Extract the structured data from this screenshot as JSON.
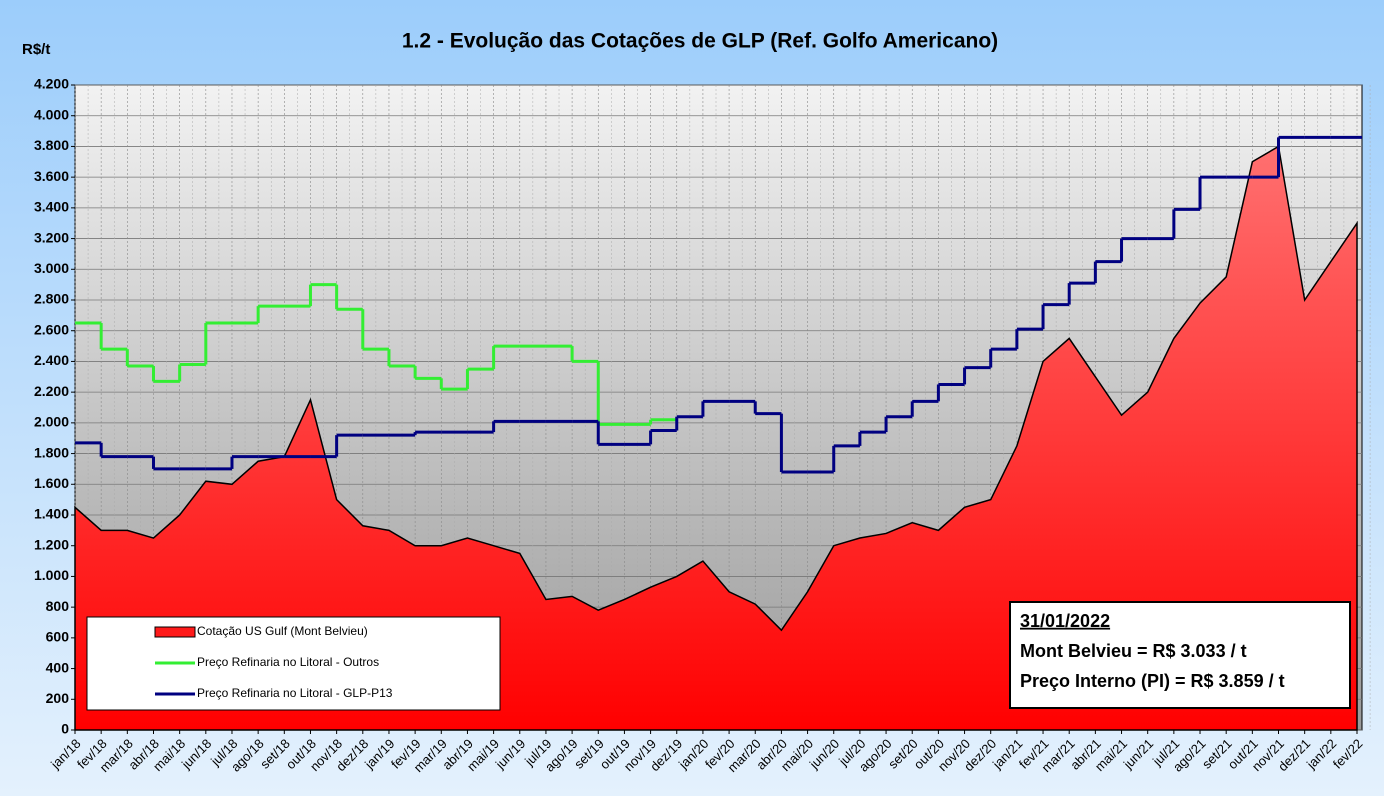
{
  "chart_data": {
    "type": "line",
    "title": "1.2 - Evolução das Cotações de GLP (Ref. Golfo Americano)",
    "y_label": "R$/t",
    "categories": [
      "jan/18",
      "fev/18",
      "mar/18",
      "abr/18",
      "mai/18",
      "jun/18",
      "jul/18",
      "ago/18",
      "set/18",
      "out/18",
      "nov/18",
      "dez/18",
      "jan/19",
      "fev/19",
      "mar/19",
      "abr/19",
      "mai/19",
      "jun/19",
      "jul/19",
      "ago/19",
      "set/19",
      "out/19",
      "nov/19",
      "dez/19",
      "jan/20",
      "fev/20",
      "mar/20",
      "abr/20",
      "mai/20",
      "jun/20",
      "jul/20",
      "ago/20",
      "set/20",
      "out/20",
      "nov/20",
      "dez/20",
      "jan/21",
      "fev/21",
      "mar/21",
      "abr/21",
      "mai/21",
      "jun/21",
      "jul/21",
      "ago/21",
      "set/21",
      "out/21",
      "nov/21",
      "dez/21",
      "jan/22",
      "fev/22"
    ],
    "series": [
      {
        "name": "Cotação US Gulf (Mont Belvieu)",
        "color": "#ff1a1a",
        "style": "area",
        "values": [
          1450,
          1300,
          1300,
          1250,
          1400,
          1620,
          1600,
          1750,
          1780,
          2150,
          1500,
          1330,
          1300,
          1200,
          1200,
          1250,
          1200,
          1150,
          850,
          870,
          780,
          850,
          930,
          1000,
          1100,
          900,
          820,
          650,
          900,
          1200,
          1250,
          1280,
          1350,
          1300,
          1450,
          1500,
          1850,
          2400,
          2550,
          2300,
          2050,
          2200,
          2550,
          2780,
          2950,
          3700,
          3800,
          2800,
          3050,
          3300
        ]
      },
      {
        "name": "Preço Refinaria no Litoral - Outros",
        "color": "#33ee33",
        "style": "step",
        "values": [
          2650,
          2480,
          2370,
          2270,
          2380,
          2650,
          2650,
          2760,
          2760,
          2900,
          2740,
          2480,
          2370,
          2290,
          2220,
          2350,
          2500,
          2500,
          2500,
          2400,
          1990,
          1990,
          2020,
          null,
          null,
          null,
          null,
          null,
          null,
          null,
          null,
          null,
          null,
          null,
          null,
          null,
          null,
          null,
          null,
          null,
          null,
          null,
          null,
          null,
          null,
          null,
          null,
          null,
          null,
          null
        ]
      },
      {
        "name": "Preço Refinaria no Litoral - GLP-P13",
        "color": "#000080",
        "style": "step",
        "values": [
          1870,
          1780,
          1780,
          1700,
          1700,
          1700,
          1780,
          1780,
          1780,
          1780,
          1920,
          1920,
          1920,
          1940,
          1940,
          1940,
          2010,
          2010,
          2010,
          2010,
          1860,
          1860,
          1950,
          2040,
          2140,
          2140,
          2060,
          1680,
          1680,
          1850,
          1940,
          2040,
          2140,
          2250,
          2360,
          2480,
          2610,
          2770,
          2910,
          3050,
          3200,
          3200,
          3390,
          3600,
          3600,
          3600,
          3859,
          3859,
          3859,
          3859
        ]
      }
    ],
    "ylim": [
      0,
      4200
    ],
    "yticks": [
      0,
      200,
      400,
      600,
      800,
      {
        "value": 1000,
        "label": "1.000"
      },
      {
        "value": 1200,
        "label": "1.200"
      },
      {
        "value": 1400,
        "label": "1.400"
      },
      {
        "value": 1600,
        "label": "1.600"
      },
      {
        "value": 1800,
        "label": "1.800"
      },
      {
        "value": 2000,
        "label": "2.000"
      },
      {
        "value": 2200,
        "label": "2.200"
      },
      {
        "value": 2400,
        "label": "2.400"
      },
      {
        "value": 2600,
        "label": "2.600"
      },
      {
        "value": 2800,
        "label": "2.800"
      },
      {
        "value": 3000,
        "label": "3.000"
      },
      {
        "value": 3200,
        "label": "3.200"
      },
      {
        "value": 3400,
        "label": "3.400"
      },
      {
        "value": 3600,
        "label": "3.600"
      },
      {
        "value": 3800,
        "label": "3.800"
      },
      {
        "value": 4000,
        "label": "4.000"
      },
      {
        "value": 4200,
        "label": "4.200"
      }
    ],
    "grid": true,
    "legend": "lower left",
    "annotations": [
      "31/01/2022",
      "Mont Belvieu = R$ 3.033 / t",
      "Preço Interno (PI) = R$ 3.859 / t"
    ]
  }
}
